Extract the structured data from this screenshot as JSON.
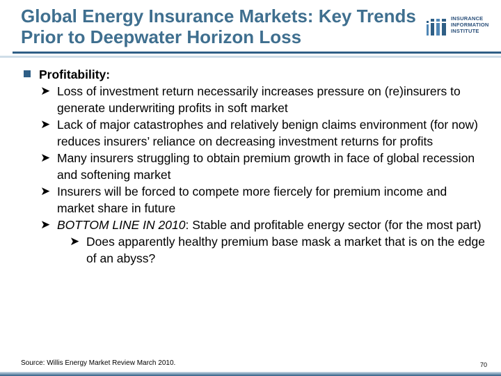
{
  "slide": {
    "title": "Global Energy Insurance Markets: Key Trends Prior to Deepwater Horizon Loss",
    "logo_text": [
      "INSURANCE",
      "INFORMATION",
      "INSTITUTE"
    ],
    "colors": {
      "title": "#3f6f8f",
      "accent": "#2f5f86",
      "rule_light": "#cfdde8"
    },
    "bullets": {
      "main": "Profitability:",
      "sub": [
        "Loss of investment return necessarily increases pressure on (re)insurers to generate underwriting profits in soft market",
        "Lack of major catastrophes and relatively benign claims environment (for now) reduces insurers’ reliance on decreasing investment returns for profits",
        "Many insurers struggling to obtain premium growth in face of global recession and softening market",
        "Insurers will be forced to compete more fiercely for premium income and market share in future"
      ],
      "bottom_line_label": "BOTTOM LINE IN 2010",
      "bottom_line_text": ":  Stable and profitable energy sector (for the most part)",
      "nested": "Does apparently healthy premium base mask a market that is on the edge of an abyss?"
    },
    "source": "Source: Willis Energy Market Review March 2010.",
    "page_number": "70"
  },
  "icons": {
    "main_bullet": "square-bullet-icon",
    "sub_bullet": "arrow-bullet-icon",
    "logo": "iii-logo-icon"
  }
}
